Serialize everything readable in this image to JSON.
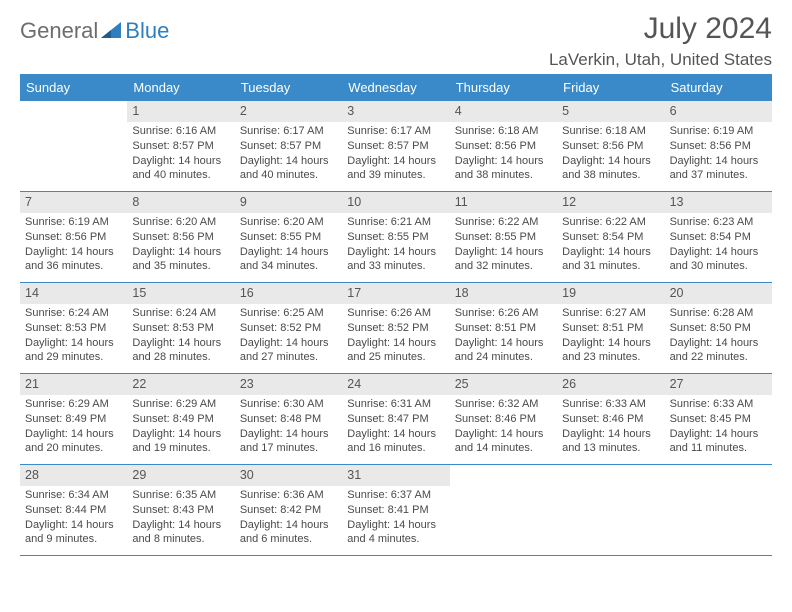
{
  "logo": {
    "text_general": "General",
    "text_blue": "Blue"
  },
  "title": "July 2024",
  "location": "LaVerkin, Utah, United States",
  "colors": {
    "header_bg": "#3a8ac9",
    "header_text": "#ffffff",
    "band_bg": "#e9e9e9",
    "body_text": "#4a4a4a",
    "title_text": "#555555",
    "logo_general": "#6d6d6d",
    "logo_blue": "#2f7fbf"
  },
  "weekdays": [
    "Sunday",
    "Monday",
    "Tuesday",
    "Wednesday",
    "Thursday",
    "Friday",
    "Saturday"
  ],
  "start_offset": 1,
  "days": [
    {
      "n": "1",
      "sr": "Sunrise: 6:16 AM",
      "ss": "Sunset: 8:57 PM",
      "dl": "Daylight: 14 hours and 40 minutes."
    },
    {
      "n": "2",
      "sr": "Sunrise: 6:17 AM",
      "ss": "Sunset: 8:57 PM",
      "dl": "Daylight: 14 hours and 40 minutes."
    },
    {
      "n": "3",
      "sr": "Sunrise: 6:17 AM",
      "ss": "Sunset: 8:57 PM",
      "dl": "Daylight: 14 hours and 39 minutes."
    },
    {
      "n": "4",
      "sr": "Sunrise: 6:18 AM",
      "ss": "Sunset: 8:56 PM",
      "dl": "Daylight: 14 hours and 38 minutes."
    },
    {
      "n": "5",
      "sr": "Sunrise: 6:18 AM",
      "ss": "Sunset: 8:56 PM",
      "dl": "Daylight: 14 hours and 38 minutes."
    },
    {
      "n": "6",
      "sr": "Sunrise: 6:19 AM",
      "ss": "Sunset: 8:56 PM",
      "dl": "Daylight: 14 hours and 37 minutes."
    },
    {
      "n": "7",
      "sr": "Sunrise: 6:19 AM",
      "ss": "Sunset: 8:56 PM",
      "dl": "Daylight: 14 hours and 36 minutes."
    },
    {
      "n": "8",
      "sr": "Sunrise: 6:20 AM",
      "ss": "Sunset: 8:56 PM",
      "dl": "Daylight: 14 hours and 35 minutes."
    },
    {
      "n": "9",
      "sr": "Sunrise: 6:20 AM",
      "ss": "Sunset: 8:55 PM",
      "dl": "Daylight: 14 hours and 34 minutes."
    },
    {
      "n": "10",
      "sr": "Sunrise: 6:21 AM",
      "ss": "Sunset: 8:55 PM",
      "dl": "Daylight: 14 hours and 33 minutes."
    },
    {
      "n": "11",
      "sr": "Sunrise: 6:22 AM",
      "ss": "Sunset: 8:55 PM",
      "dl": "Daylight: 14 hours and 32 minutes."
    },
    {
      "n": "12",
      "sr": "Sunrise: 6:22 AM",
      "ss": "Sunset: 8:54 PM",
      "dl": "Daylight: 14 hours and 31 minutes."
    },
    {
      "n": "13",
      "sr": "Sunrise: 6:23 AM",
      "ss": "Sunset: 8:54 PM",
      "dl": "Daylight: 14 hours and 30 minutes."
    },
    {
      "n": "14",
      "sr": "Sunrise: 6:24 AM",
      "ss": "Sunset: 8:53 PM",
      "dl": "Daylight: 14 hours and 29 minutes."
    },
    {
      "n": "15",
      "sr": "Sunrise: 6:24 AM",
      "ss": "Sunset: 8:53 PM",
      "dl": "Daylight: 14 hours and 28 minutes."
    },
    {
      "n": "16",
      "sr": "Sunrise: 6:25 AM",
      "ss": "Sunset: 8:52 PM",
      "dl": "Daylight: 14 hours and 27 minutes."
    },
    {
      "n": "17",
      "sr": "Sunrise: 6:26 AM",
      "ss": "Sunset: 8:52 PM",
      "dl": "Daylight: 14 hours and 25 minutes."
    },
    {
      "n": "18",
      "sr": "Sunrise: 6:26 AM",
      "ss": "Sunset: 8:51 PM",
      "dl": "Daylight: 14 hours and 24 minutes."
    },
    {
      "n": "19",
      "sr": "Sunrise: 6:27 AM",
      "ss": "Sunset: 8:51 PM",
      "dl": "Daylight: 14 hours and 23 minutes."
    },
    {
      "n": "20",
      "sr": "Sunrise: 6:28 AM",
      "ss": "Sunset: 8:50 PM",
      "dl": "Daylight: 14 hours and 22 minutes."
    },
    {
      "n": "21",
      "sr": "Sunrise: 6:29 AM",
      "ss": "Sunset: 8:49 PM",
      "dl": "Daylight: 14 hours and 20 minutes."
    },
    {
      "n": "22",
      "sr": "Sunrise: 6:29 AM",
      "ss": "Sunset: 8:49 PM",
      "dl": "Daylight: 14 hours and 19 minutes."
    },
    {
      "n": "23",
      "sr": "Sunrise: 6:30 AM",
      "ss": "Sunset: 8:48 PM",
      "dl": "Daylight: 14 hours and 17 minutes."
    },
    {
      "n": "24",
      "sr": "Sunrise: 6:31 AM",
      "ss": "Sunset: 8:47 PM",
      "dl": "Daylight: 14 hours and 16 minutes."
    },
    {
      "n": "25",
      "sr": "Sunrise: 6:32 AM",
      "ss": "Sunset: 8:46 PM",
      "dl": "Daylight: 14 hours and 14 minutes."
    },
    {
      "n": "26",
      "sr": "Sunrise: 6:33 AM",
      "ss": "Sunset: 8:46 PM",
      "dl": "Daylight: 14 hours and 13 minutes."
    },
    {
      "n": "27",
      "sr": "Sunrise: 6:33 AM",
      "ss": "Sunset: 8:45 PM",
      "dl": "Daylight: 14 hours and 11 minutes."
    },
    {
      "n": "28",
      "sr": "Sunrise: 6:34 AM",
      "ss": "Sunset: 8:44 PM",
      "dl": "Daylight: 14 hours and 9 minutes."
    },
    {
      "n": "29",
      "sr": "Sunrise: 6:35 AM",
      "ss": "Sunset: 8:43 PM",
      "dl": "Daylight: 14 hours and 8 minutes."
    },
    {
      "n": "30",
      "sr": "Sunrise: 6:36 AM",
      "ss": "Sunset: 8:42 PM",
      "dl": "Daylight: 14 hours and 6 minutes."
    },
    {
      "n": "31",
      "sr": "Sunrise: 6:37 AM",
      "ss": "Sunset: 8:41 PM",
      "dl": "Daylight: 14 hours and 4 minutes."
    }
  ]
}
